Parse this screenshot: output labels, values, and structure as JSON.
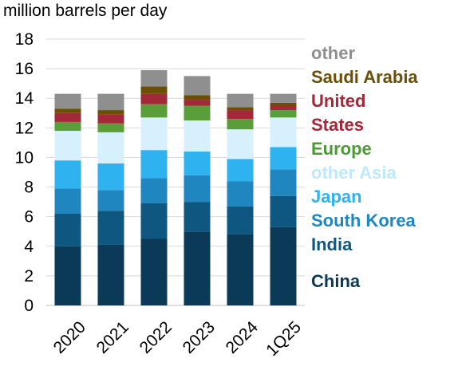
{
  "chart_data": {
    "type": "bar",
    "stacked": true,
    "ylabel": "million barrels per day",
    "ylim": [
      0,
      18
    ],
    "yticks": [
      0,
      2,
      4,
      6,
      8,
      10,
      12,
      14,
      16,
      18
    ],
    "grid": true,
    "legend_position": "right",
    "categories": [
      "2020",
      "2021",
      "2022",
      "2023",
      "2024",
      "1Q25"
    ],
    "series": [
      {
        "name": "China",
        "color": "#0b3a59",
        "label_color": "#0b3a59",
        "values": [
          4.0,
          4.1,
          4.5,
          5.0,
          4.8,
          5.3
        ]
      },
      {
        "name": "India",
        "color": "#0d5780",
        "label_color": "#0d5780",
        "values": [
          2.2,
          2.3,
          2.4,
          2.0,
          1.9,
          2.1
        ]
      },
      {
        "name": "South Korea",
        "color": "#1f86bf",
        "label_color": "#1f86bf",
        "values": [
          1.7,
          1.4,
          1.7,
          1.8,
          1.7,
          1.8
        ]
      },
      {
        "name": "Japan",
        "color": "#2eb2f0",
        "label_color": "#2eb2f0",
        "values": [
          1.9,
          1.8,
          1.9,
          1.6,
          1.5,
          1.5
        ]
      },
      {
        "name": "other Asia",
        "color": "#d6f1fd",
        "label_color": "#bfe9fb",
        "values": [
          2.0,
          2.1,
          2.2,
          2.1,
          2.0,
          2.0
        ]
      },
      {
        "name": "Europe",
        "color": "#5a9e3a",
        "label_color": "#4e9a38",
        "values": [
          0.6,
          0.6,
          0.9,
          1.0,
          0.7,
          0.5
        ]
      },
      {
        "name": "United States",
        "color": "#a3283a",
        "label_color": "#a3283a",
        "values": [
          0.6,
          0.6,
          0.7,
          0.4,
          0.6,
          0.3
        ]
      },
      {
        "name": "Saudi Arabia",
        "color": "#6b4f05",
        "label_color": "#6b4f05",
        "values": [
          0.3,
          0.3,
          0.5,
          0.3,
          0.2,
          0.2
        ]
      },
      {
        "name": "other",
        "color": "#8f8f8f",
        "label_color": "#8f8f8f",
        "values": [
          1.0,
          1.1,
          1.1,
          1.3,
          0.9,
          0.6
        ]
      }
    ],
    "legend_entries": [
      {
        "series": "other",
        "lines": [
          "other"
        ]
      },
      {
        "series": "Saudi Arabia",
        "lines": [
          "Saudi Arabia"
        ]
      },
      {
        "series": "United States",
        "lines": [
          "United",
          "States"
        ]
      },
      {
        "series": "Europe",
        "lines": [
          "Europe"
        ]
      },
      {
        "series": "other Asia",
        "lines": [
          "other Asia"
        ]
      },
      {
        "series": "Japan",
        "lines": [
          "Japan"
        ]
      },
      {
        "series": "South Korea",
        "lines": [
          "South Korea"
        ]
      },
      {
        "series": "India",
        "lines": [
          "India"
        ]
      },
      {
        "series": "China",
        "lines": [
          "China"
        ]
      }
    ]
  }
}
